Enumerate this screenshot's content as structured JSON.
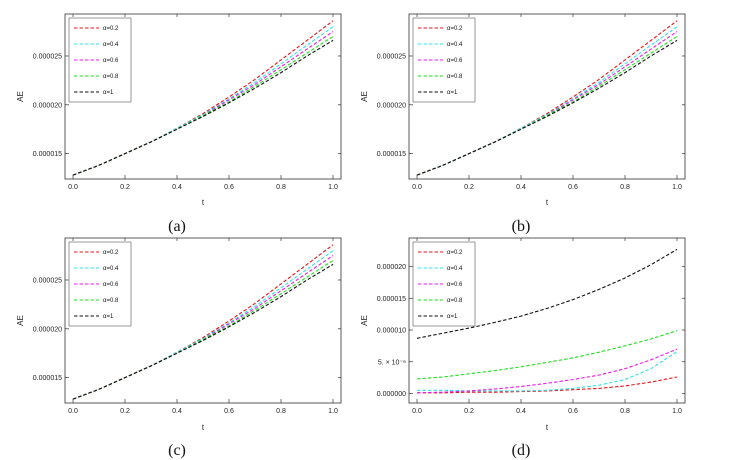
{
  "colors": {
    "alpha_0_2": "#e8141a",
    "alpha_0_4": "#36e0e8",
    "alpha_0_6": "#e81ee8",
    "alpha_0_8": "#22dd22",
    "alpha_1": "#111111"
  },
  "chart_data": [
    {
      "type": "line",
      "panel_label": "(a)",
      "xlabel": "t",
      "ylabel": "AE",
      "xlim": [
        0,
        1
      ],
      "ylim": [
        1.24e-05,
        2.93e-05
      ],
      "x_ticks": [
        0,
        0.2,
        0.4,
        0.6,
        0.8,
        1.0
      ],
      "x_tick_labels": [
        "0.0",
        "0.2",
        "0.4",
        "0.6",
        "0.8",
        "1.0"
      ],
      "y_ticks": [
        1.5e-05,
        2e-05,
        2.5e-05
      ],
      "y_tick_labels": [
        "0.000015",
        "0.000020",
        "0.000025"
      ],
      "legend_position": "top-left",
      "series": [
        {
          "name": "α=0.2",
          "color_key": "alpha_0_2",
          "x": [
            0,
            0.1,
            0.2,
            0.3,
            0.4,
            0.5,
            0.6,
            0.7,
            0.8,
            0.9,
            1.0
          ],
          "values": [
            1.28e-05,
            1.38e-05,
            1.5e-05,
            1.62e-05,
            1.76e-05,
            1.91e-05,
            2.08e-05,
            2.26e-05,
            2.46e-05,
            2.66e-05,
            2.86e-05
          ]
        },
        {
          "name": "α=0.4",
          "color_key": "alpha_0_4",
          "x": [
            0,
            0.1,
            0.2,
            0.3,
            0.4,
            0.5,
            0.6,
            0.7,
            0.8,
            0.9,
            1.0
          ],
          "values": [
            1.28e-05,
            1.38e-05,
            1.5e-05,
            1.62e-05,
            1.76e-05,
            1.9e-05,
            2.06e-05,
            2.23e-05,
            2.42e-05,
            2.61e-05,
            2.8e-05
          ]
        },
        {
          "name": "α=0.6",
          "color_key": "alpha_0_6",
          "x": [
            0,
            0.1,
            0.2,
            0.3,
            0.4,
            0.5,
            0.6,
            0.7,
            0.8,
            0.9,
            1.0
          ],
          "values": [
            1.28e-05,
            1.38e-05,
            1.5e-05,
            1.62e-05,
            1.75e-05,
            1.89e-05,
            2.05e-05,
            2.21e-05,
            2.39e-05,
            2.57e-05,
            2.75e-05
          ]
        },
        {
          "name": "α=0.8",
          "color_key": "alpha_0_8",
          "x": [
            0,
            0.1,
            0.2,
            0.3,
            0.4,
            0.5,
            0.6,
            0.7,
            0.8,
            0.9,
            1.0
          ],
          "values": [
            1.28e-05,
            1.38e-05,
            1.5e-05,
            1.62e-05,
            1.75e-05,
            1.89e-05,
            2.03e-05,
            2.19e-05,
            2.36e-05,
            2.53e-05,
            2.7e-05
          ]
        },
        {
          "name": "α=1",
          "color_key": "alpha_1",
          "x": [
            0,
            0.1,
            0.2,
            0.3,
            0.4,
            0.5,
            0.6,
            0.7,
            0.8,
            0.9,
            1.0
          ],
          "values": [
            1.28e-05,
            1.38e-05,
            1.5e-05,
            1.62e-05,
            1.75e-05,
            1.88e-05,
            2.02e-05,
            2.17e-05,
            2.33e-05,
            2.5e-05,
            2.66e-05
          ]
        }
      ]
    },
    {
      "type": "line",
      "panel_label": "(b)",
      "xlabel": "t",
      "ylabel": "AE",
      "xlim": [
        0,
        1
      ],
      "ylim": [
        1.24e-05,
        2.93e-05
      ],
      "x_ticks": [
        0,
        0.2,
        0.4,
        0.6,
        0.8,
        1.0
      ],
      "x_tick_labels": [
        "0.0",
        "0.2",
        "0.4",
        "0.6",
        "0.8",
        "1.0"
      ],
      "y_ticks": [
        1.5e-05,
        2e-05,
        2.5e-05
      ],
      "y_tick_labels": [
        "0.000015",
        "0.000020",
        "0.000025"
      ],
      "legend_position": "top-left",
      "series": [
        {
          "name": "α=0.2",
          "color_key": "alpha_0_2",
          "x": [
            0,
            0.1,
            0.2,
            0.3,
            0.4,
            0.5,
            0.6,
            0.7,
            0.8,
            0.9,
            1.0
          ],
          "values": [
            1.28e-05,
            1.38e-05,
            1.5e-05,
            1.62e-05,
            1.76e-05,
            1.91e-05,
            2.08e-05,
            2.26e-05,
            2.46e-05,
            2.66e-05,
            2.86e-05
          ]
        },
        {
          "name": "α=0.4",
          "color_key": "alpha_0_4",
          "x": [
            0,
            0.1,
            0.2,
            0.3,
            0.4,
            0.5,
            0.6,
            0.7,
            0.8,
            0.9,
            1.0
          ],
          "values": [
            1.28e-05,
            1.38e-05,
            1.5e-05,
            1.62e-05,
            1.76e-05,
            1.9e-05,
            2.06e-05,
            2.23e-05,
            2.42e-05,
            2.61e-05,
            2.8e-05
          ]
        },
        {
          "name": "α=0.6",
          "color_key": "alpha_0_6",
          "x": [
            0,
            0.1,
            0.2,
            0.3,
            0.4,
            0.5,
            0.6,
            0.7,
            0.8,
            0.9,
            1.0
          ],
          "values": [
            1.28e-05,
            1.38e-05,
            1.5e-05,
            1.62e-05,
            1.75e-05,
            1.89e-05,
            2.05e-05,
            2.21e-05,
            2.39e-05,
            2.57e-05,
            2.75e-05
          ]
        },
        {
          "name": "α=0.8",
          "color_key": "alpha_0_8",
          "x": [
            0,
            0.1,
            0.2,
            0.3,
            0.4,
            0.5,
            0.6,
            0.7,
            0.8,
            0.9,
            1.0
          ],
          "values": [
            1.28e-05,
            1.38e-05,
            1.5e-05,
            1.62e-05,
            1.75e-05,
            1.89e-05,
            2.03e-05,
            2.19e-05,
            2.36e-05,
            2.53e-05,
            2.7e-05
          ]
        },
        {
          "name": "α=1",
          "color_key": "alpha_1",
          "x": [
            0,
            0.1,
            0.2,
            0.3,
            0.4,
            0.5,
            0.6,
            0.7,
            0.8,
            0.9,
            1.0
          ],
          "values": [
            1.28e-05,
            1.38e-05,
            1.5e-05,
            1.62e-05,
            1.75e-05,
            1.88e-05,
            2.02e-05,
            2.17e-05,
            2.33e-05,
            2.5e-05,
            2.66e-05
          ]
        }
      ]
    },
    {
      "type": "line",
      "panel_label": "(c)",
      "xlabel": "t",
      "ylabel": "AE",
      "xlim": [
        0,
        1
      ],
      "ylim": [
        1.24e-05,
        2.93e-05
      ],
      "x_ticks": [
        0,
        0.2,
        0.4,
        0.6,
        0.8,
        1.0
      ],
      "x_tick_labels": [
        "0.0",
        "0.2",
        "0.4",
        "0.6",
        "0.8",
        "1.0"
      ],
      "y_ticks": [
        1.5e-05,
        2e-05,
        2.5e-05
      ],
      "y_tick_labels": [
        "0.000015",
        "0.000020",
        "0.000025"
      ],
      "legend_position": "top-left",
      "series": [
        {
          "name": "α=0.2",
          "color_key": "alpha_0_2",
          "x": [
            0,
            0.1,
            0.2,
            0.3,
            0.4,
            0.5,
            0.6,
            0.7,
            0.8,
            0.9,
            1.0
          ],
          "values": [
            1.28e-05,
            1.38e-05,
            1.5e-05,
            1.62e-05,
            1.76e-05,
            1.91e-05,
            2.08e-05,
            2.26e-05,
            2.46e-05,
            2.66e-05,
            2.86e-05
          ]
        },
        {
          "name": "α=0.4",
          "color_key": "alpha_0_4",
          "x": [
            0,
            0.1,
            0.2,
            0.3,
            0.4,
            0.5,
            0.6,
            0.7,
            0.8,
            0.9,
            1.0
          ],
          "values": [
            1.28e-05,
            1.38e-05,
            1.5e-05,
            1.62e-05,
            1.76e-05,
            1.9e-05,
            2.06e-05,
            2.23e-05,
            2.42e-05,
            2.61e-05,
            2.8e-05
          ]
        },
        {
          "name": "α=0.6",
          "color_key": "alpha_0_6",
          "x": [
            0,
            0.1,
            0.2,
            0.3,
            0.4,
            0.5,
            0.6,
            0.7,
            0.8,
            0.9,
            1.0
          ],
          "values": [
            1.28e-05,
            1.38e-05,
            1.5e-05,
            1.62e-05,
            1.75e-05,
            1.89e-05,
            2.05e-05,
            2.21e-05,
            2.39e-05,
            2.57e-05,
            2.75e-05
          ]
        },
        {
          "name": "α=0.8",
          "color_key": "alpha_0_8",
          "x": [
            0,
            0.1,
            0.2,
            0.3,
            0.4,
            0.5,
            0.6,
            0.7,
            0.8,
            0.9,
            1.0
          ],
          "values": [
            1.28e-05,
            1.38e-05,
            1.5e-05,
            1.62e-05,
            1.75e-05,
            1.89e-05,
            2.03e-05,
            2.19e-05,
            2.36e-05,
            2.53e-05,
            2.7e-05
          ]
        },
        {
          "name": "α=1",
          "color_key": "alpha_1",
          "x": [
            0,
            0.1,
            0.2,
            0.3,
            0.4,
            0.5,
            0.6,
            0.7,
            0.8,
            0.9,
            1.0
          ],
          "values": [
            1.28e-05,
            1.38e-05,
            1.5e-05,
            1.62e-05,
            1.75e-05,
            1.88e-05,
            2.02e-05,
            2.17e-05,
            2.33e-05,
            2.5e-05,
            2.66e-05
          ]
        }
      ]
    },
    {
      "type": "line",
      "panel_label": "(d)",
      "xlabel": "t",
      "ylabel": "AE",
      "xlim": [
        0,
        1
      ],
      "ylim": [
        -1.5e-06,
        2.45e-05
      ],
      "x_ticks": [
        0,
        0.2,
        0.4,
        0.6,
        0.8,
        1.0
      ],
      "x_tick_labels": [
        "0.0",
        "0.2",
        "0.4",
        "0.6",
        "0.8",
        "1.0"
      ],
      "y_ticks": [
        0,
        5e-06,
        1e-05,
        1.5e-05,
        2e-05
      ],
      "y_tick_labels": [
        "0.000000",
        "5. × 10⁻⁶",
        "0.000010",
        "0.000015",
        "0.000020"
      ],
      "legend_position": "top-left",
      "series": [
        {
          "name": "α=0.2",
          "color_key": "alpha_0_2",
          "x": [
            0,
            0.1,
            0.2,
            0.3,
            0.4,
            0.5,
            0.6,
            0.7,
            0.8,
            0.9,
            1.0
          ],
          "values": [
            1e-07,
            1e-07,
            2e-07,
            2e-07,
            3e-07,
            4e-07,
            6e-07,
            8e-07,
            1.2e-06,
            1.8e-06,
            2.6e-06
          ]
        },
        {
          "name": "α=0.4",
          "color_key": "alpha_0_4",
          "x": [
            0,
            0.1,
            0.2,
            0.3,
            0.4,
            0.5,
            0.6,
            0.7,
            0.8,
            0.9,
            1.0
          ],
          "values": [
            5e-07,
            5e-07,
            4e-07,
            4e-07,
            4e-07,
            5e-07,
            8e-07,
            1.3e-06,
            2.2e-06,
            3.9e-06,
            6.6e-06
          ]
        },
        {
          "name": "α=0.6",
          "color_key": "alpha_0_6",
          "x": [
            0,
            0.1,
            0.2,
            0.3,
            0.4,
            0.5,
            0.6,
            0.7,
            0.8,
            0.9,
            1.0
          ],
          "values": [
            1e-07,
            2e-07,
            4e-07,
            7e-07,
            1.1e-06,
            1.6e-06,
            2.2e-06,
            2.9e-06,
            3.9e-06,
            5.3e-06,
            7e-06
          ]
        },
        {
          "name": "α=0.8",
          "color_key": "alpha_0_8",
          "x": [
            0,
            0.1,
            0.2,
            0.3,
            0.4,
            0.5,
            0.6,
            0.7,
            0.8,
            0.9,
            1.0
          ],
          "values": [
            2.3e-06,
            2.6e-06,
            3.1e-06,
            3.6e-06,
            4.2e-06,
            4.9e-06,
            5.6e-06,
            6.5e-06,
            7.5e-06,
            8.6e-06,
            9.9e-06
          ]
        },
        {
          "name": "α=1",
          "color_key": "alpha_1",
          "x": [
            0,
            0.1,
            0.2,
            0.3,
            0.4,
            0.5,
            0.6,
            0.7,
            0.8,
            0.9,
            1.0
          ],
          "values": [
            8.7e-06,
            9.5e-06,
            1.03e-05,
            1.12e-05,
            1.22e-05,
            1.34e-05,
            1.48e-05,
            1.64e-05,
            1.82e-05,
            2.03e-05,
            2.27e-05
          ]
        }
      ]
    }
  ]
}
